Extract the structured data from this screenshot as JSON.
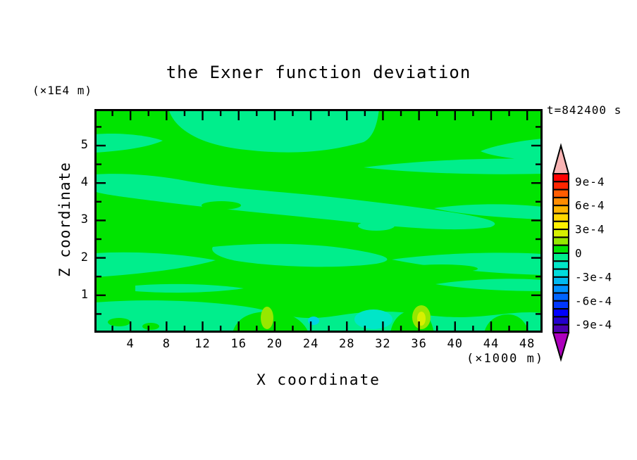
{
  "figure": {
    "title": "the Exner function deviation",
    "timestamp": "t=842400 s",
    "y_unit": "(×1E4 m)",
    "x_unit": "(×1000 m)",
    "xlabel": "X coordinate",
    "ylabel": "Z coordinate"
  },
  "chart_data": {
    "type": "heatmap",
    "subtype": "filled-contour",
    "title": "the Exner function deviation",
    "time_annotation": "t=842400 s",
    "xlabel": "X coordinate",
    "x_unit": "(×1000 m)",
    "ylabel": "Z coordinate",
    "y_unit": "(×1E4 m)",
    "xlim": [
      0,
      49.7
    ],
    "ylim": [
      0,
      6
    ],
    "x_major_ticks": [
      4,
      8,
      12,
      16,
      20,
      24,
      28,
      32,
      36,
      40,
      44,
      48
    ],
    "x_minor_step": 2,
    "y_major_ticks": [
      1,
      2,
      3,
      4,
      5
    ],
    "y_minor_step": 0.5,
    "grid": false,
    "contour_interval": 0.0001,
    "colorbar": {
      "position": "right",
      "max": 0.001,
      "min": -0.001,
      "over_arrow_color": "#f9b4b4",
      "under_arrow_color": "#ad00bd",
      "segment_colors_top_to_bottom": [
        "#ff0000",
        "#ff2600",
        "#ff5c00",
        "#ff8c00",
        "#ffb400",
        "#ffd700",
        "#fff000",
        "#d7f000",
        "#96e800",
        "#00e400",
        "#00ee8c",
        "#00e6c8",
        "#00dcdc",
        "#00b9f0",
        "#0091ff",
        "#0064ff",
        "#0037ff",
        "#0000ff",
        "#2300cd",
        "#4b00b0"
      ],
      "labels": [
        {
          "text": "9e-4",
          "boundary_index": 1
        },
        {
          "text": "6e-4",
          "boundary_index": 4
        },
        {
          "text": "3e-4",
          "boundary_index": 7
        },
        {
          "text": "0",
          "boundary_index": 10
        },
        {
          "text": "-3e-4",
          "boundary_index": 13
        },
        {
          "text": "-6e-4",
          "boundary_index": 16
        },
        {
          "text": "-9e-4",
          "boundary_index": 19
        }
      ]
    },
    "level_colors": {
      "pos1": "#00e400",
      "neg1": "#00ee8c",
      "pos2": "#96e800",
      "pos3": "#d7f000",
      "neg2": "#00e6c8",
      "neg3": "#00d2e6"
    },
    "field_description": "Nearly-zero deviation everywhere: wavy horizontal bands alternating between the 0..+1e-4 band (green) and the -1e-4..0 band (spring green); small stronger anomalies confined near the bottom boundary.",
    "features": [
      {
        "name": "positive spot",
        "x_x1000m": [
          18.5,
          19.9
        ],
        "z_x1E4m": [
          0.0,
          0.65
        ],
        "band": "+1e-4 to +2e-4"
      },
      {
        "name": "positive spot with stronger core",
        "x_x1000m": [
          35.2,
          37.3
        ],
        "z_x1E4m": [
          0.0,
          0.75
        ],
        "band": "+2e-4 to +3e-4 core"
      },
      {
        "name": "negative pool",
        "x_x1000m": [
          29.0,
          33.0
        ],
        "z_x1E4m": [
          0.0,
          0.6
        ],
        "band": "-1e-4 to -2e-4"
      },
      {
        "name": "negative spot",
        "x_x1000m": [
          23.9,
          24.9
        ],
        "z_x1E4m": [
          0.2,
          0.55
        ],
        "band": "-2e-4 to -3e-4"
      }
    ]
  }
}
